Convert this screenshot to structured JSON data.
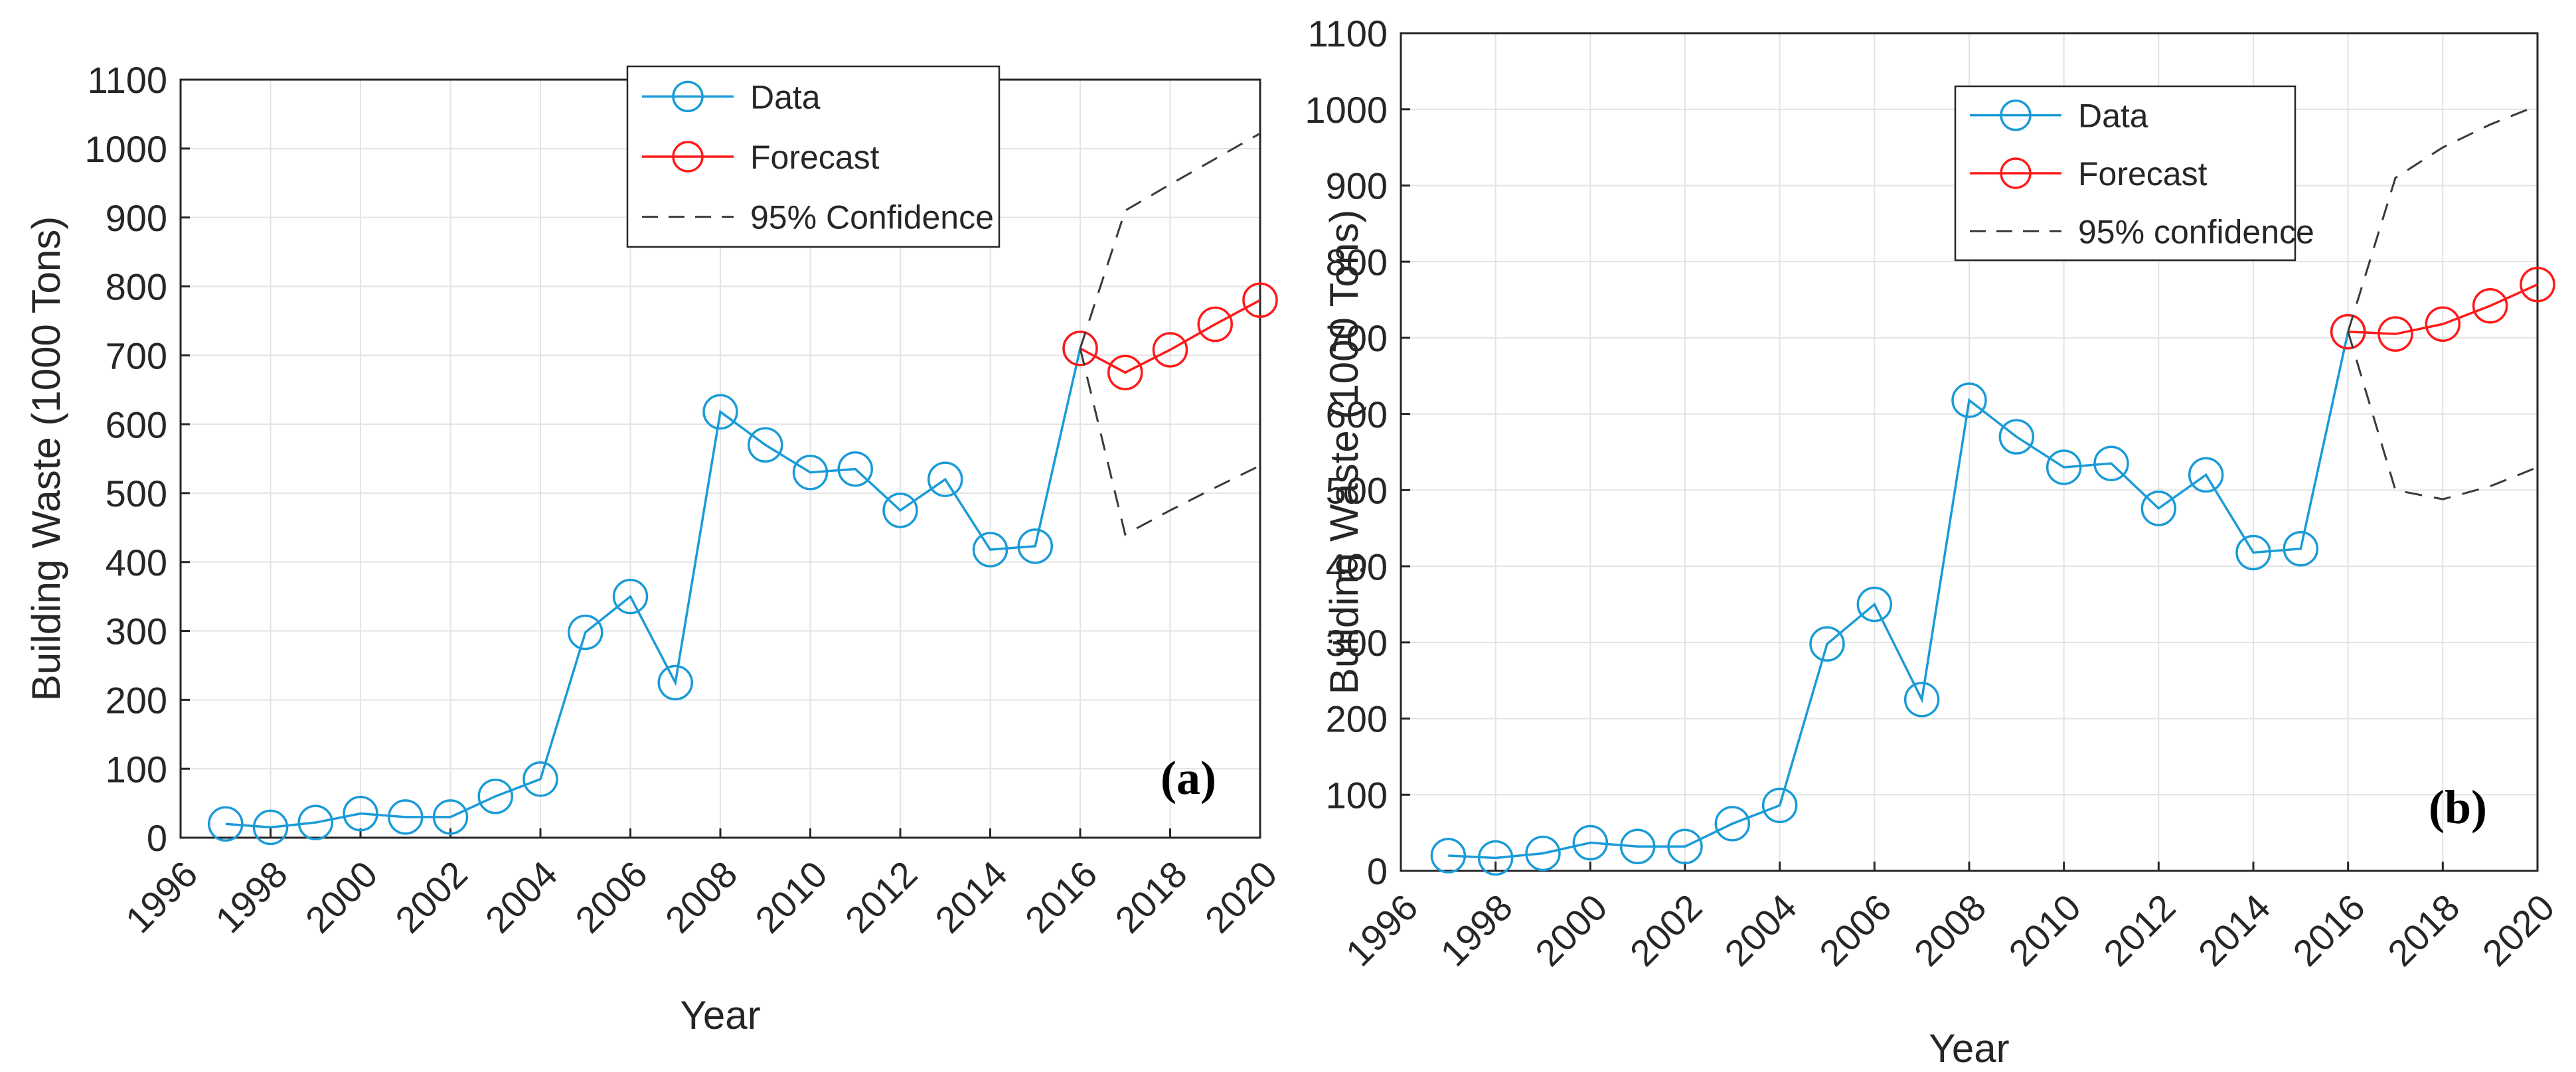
{
  "colors": {
    "data_series": "#1a9bd7",
    "forecast_series": "#ff1a1a",
    "confidence": "#3a3a3a",
    "grid": "#e3e3e3",
    "axes": "#262626",
    "text": "#262626"
  },
  "chart_data": [
    {
      "type": "line",
      "panel_label": "(a)",
      "xlabel": "Year",
      "ylabel": "Building Waste (1000 Tons)",
      "xlim": [
        1996,
        2020
      ],
      "ylim": [
        0,
        1100
      ],
      "xticks": [
        1996,
        1998,
        2000,
        2002,
        2004,
        2006,
        2008,
        2010,
        2012,
        2014,
        2016,
        2018,
        2020
      ],
      "xtick_labels": [
        "1996",
        "1998",
        "2000",
        "2002",
        "2004",
        "2006",
        "2008",
        "2010",
        "2012",
        "2014",
        "2016",
        "2018",
        "2020"
      ],
      "yticks": [
        0,
        100,
        200,
        300,
        400,
        500,
        600,
        700,
        800,
        900,
        1000,
        1100
      ],
      "ytick_labels": [
        "0",
        "100",
        "200",
        "300",
        "400",
        "500",
        "600",
        "700",
        "800",
        "900",
        "1000",
        "1100"
      ],
      "grid": true,
      "legend": {
        "position": "top-center",
        "entries": [
          "Data",
          "Forecast",
          "95% Confidence"
        ]
      },
      "series": [
        {
          "name": "Data",
          "style": "line-circle",
          "x": [
            1997,
            1998,
            1999,
            2000,
            2001,
            2002,
            2003,
            2004,
            2005,
            2006,
            2007,
            2008,
            2009,
            2010,
            2011,
            2012,
            2013,
            2014,
            2015,
            2016
          ],
          "y": [
            20,
            15,
            22,
            35,
            30,
            30,
            60,
            85,
            298,
            350,
            225,
            618,
            570,
            530,
            535,
            475,
            520,
            418,
            423,
            710
          ]
        },
        {
          "name": "Forecast",
          "style": "line-circle",
          "x": [
            2016,
            2017,
            2018,
            2019,
            2020
          ],
          "y": [
            710,
            675,
            708,
            745,
            780
          ]
        },
        {
          "name": "95% Confidence",
          "style": "dashed",
          "x": [
            2016,
            2017,
            2018,
            2019,
            2020
          ],
          "y": [
            710,
            910,
            948,
            985,
            1022
          ]
        },
        {
          "name": "95% Confidence (lower)",
          "style": "dashed",
          "x": [
            2016,
            2017,
            2018,
            2019,
            2020
          ],
          "y": [
            710,
            440,
            475,
            508,
            540
          ]
        }
      ]
    },
    {
      "type": "line",
      "panel_label": "(b)",
      "xlabel": "Year",
      "ylabel": "Building Waste (1000 Tons)",
      "xlim": [
        1996,
        2020
      ],
      "ylim": [
        0,
        1100
      ],
      "xticks": [
        1996,
        1998,
        2000,
        2002,
        2004,
        2006,
        2008,
        2010,
        2012,
        2014,
        2016,
        2018,
        2020
      ],
      "xtick_labels": [
        "1996",
        "1998",
        "2000",
        "2002",
        "2004",
        "2006",
        "2008",
        "2010",
        "2012",
        "2014",
        "2016",
        "2018",
        "2020"
      ],
      "yticks": [
        0,
        100,
        200,
        300,
        400,
        500,
        600,
        700,
        800,
        900,
        1000,
        1100
      ],
      "ytick_labels": [
        "0",
        "100",
        "200",
        "300",
        "400",
        "500",
        "600",
        "700",
        "800",
        "900",
        "1000",
        "1100"
      ],
      "grid": true,
      "legend": {
        "position": "top-center",
        "entries": [
          "Data",
          "Forecast",
          "95% confidence"
        ]
      },
      "series": [
        {
          "name": "Data",
          "style": "line-circle",
          "x": [
            1997,
            1998,
            1999,
            2000,
            2001,
            2002,
            2003,
            2004,
            2005,
            2006,
            2007,
            2008,
            2009,
            2010,
            2011,
            2012,
            2013,
            2014,
            2015,
            2016
          ],
          "y": [
            20,
            17,
            23,
            37,
            32,
            32,
            62,
            86,
            298,
            350,
            225,
            618,
            570,
            530,
            535,
            476,
            520,
            418,
            423,
            708
          ]
        },
        {
          "name": "Forecast",
          "style": "line-circle",
          "x": [
            2016,
            2017,
            2018,
            2019,
            2020
          ],
          "y": [
            708,
            705,
            718,
            742,
            770
          ]
        },
        {
          "name": "95% confidence",
          "style": "dashed",
          "x": [
            2016,
            2017,
            2018,
            2019,
            2020
          ],
          "y": [
            708,
            910,
            950,
            980,
            1005
          ]
        },
        {
          "name": "95% confidence (lower)",
          "style": "dashed",
          "x": [
            2016,
            2017,
            2018,
            2019,
            2020
          ],
          "y": [
            708,
            500,
            488,
            505,
            530
          ]
        }
      ]
    }
  ]
}
